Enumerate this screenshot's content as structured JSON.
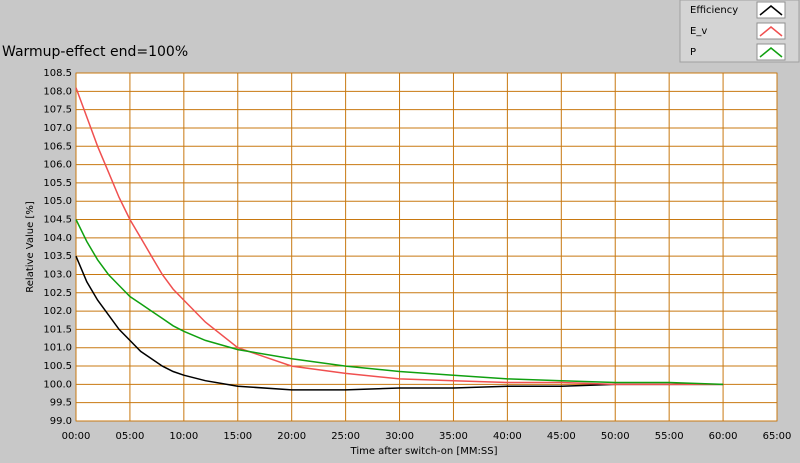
{
  "chart_data": {
    "type": "line",
    "title": "Warmup-effect end=100%",
    "x_label": "Time after switch-on [MM:SS]",
    "y_label": "Relative Value [%]",
    "x": [
      0,
      1,
      2,
      3,
      4,
      5,
      6,
      7,
      8,
      9,
      10,
      12,
      15,
      20,
      25,
      30,
      35,
      40,
      45,
      50,
      55,
      60
    ],
    "series": [
      {
        "name": "Efficiency",
        "color": "#000000",
        "values": [
          103.5,
          102.8,
          102.3,
          101.9,
          101.5,
          101.2,
          100.9,
          100.7,
          100.5,
          100.35,
          100.25,
          100.1,
          99.95,
          99.85,
          99.85,
          99.9,
          99.9,
          99.95,
          99.95,
          100.0,
          100.0,
          100.0
        ]
      },
      {
        "name": "E_v",
        "color": "#f05050",
        "values": [
          108.1,
          107.3,
          106.5,
          105.8,
          105.1,
          104.5,
          104.0,
          103.5,
          103.0,
          102.6,
          102.3,
          101.7,
          101.0,
          100.5,
          100.3,
          100.15,
          100.1,
          100.05,
          100.05,
          100.0,
          100.0,
          100.0
        ]
      },
      {
        "name": "P",
        "color": "#10a010",
        "values": [
          104.5,
          103.9,
          103.4,
          103.0,
          102.7,
          102.4,
          102.2,
          102.0,
          101.8,
          101.6,
          101.45,
          101.2,
          100.95,
          100.7,
          100.5,
          100.35,
          100.25,
          100.15,
          100.1,
          100.05,
          100.05,
          100.0
        ]
      }
    ],
    "xlim": [
      0,
      65
    ],
    "xticks": [
      {
        "value": 0,
        "label": "00:00"
      },
      {
        "value": 5,
        "label": "05:00"
      },
      {
        "value": 10,
        "label": "10:00"
      },
      {
        "value": 15,
        "label": "15:00"
      },
      {
        "value": 20,
        "label": "20:00"
      },
      {
        "value": 25,
        "label": "25:00"
      },
      {
        "value": 30,
        "label": "30:00"
      },
      {
        "value": 35,
        "label": "35:00"
      },
      {
        "value": 40,
        "label": "40:00"
      },
      {
        "value": 45,
        "label": "45:00"
      },
      {
        "value": 50,
        "label": "50:00"
      },
      {
        "value": 55,
        "label": "55:00"
      },
      {
        "value": 60,
        "label": "60:00"
      },
      {
        "value": 65,
        "label": "65:00"
      }
    ],
    "ylim": [
      99.0,
      108.5
    ],
    "yticks": [
      {
        "value": 99,
        "label": "99.0"
      },
      99.5,
      {
        "value": 100,
        "label": "100.0"
      },
      100.5,
      {
        "value": 101,
        "label": "101.0"
      },
      101.5,
      {
        "value": 102,
        "label": "102.0"
      },
      102.5,
      {
        "value": 103,
        "label": "103.0"
      },
      103.5,
      {
        "value": 104,
        "label": "104.0"
      },
      104.5,
      {
        "value": 105,
        "label": "105.0"
      },
      105.5,
      {
        "value": 106,
        "label": "106.0"
      },
      106.5,
      {
        "value": 107,
        "label": "107.0"
      },
      107.5,
      {
        "value": 108,
        "label": "108.0"
      },
      108.5
    ],
    "grid": true,
    "legend": "top-right"
  }
}
